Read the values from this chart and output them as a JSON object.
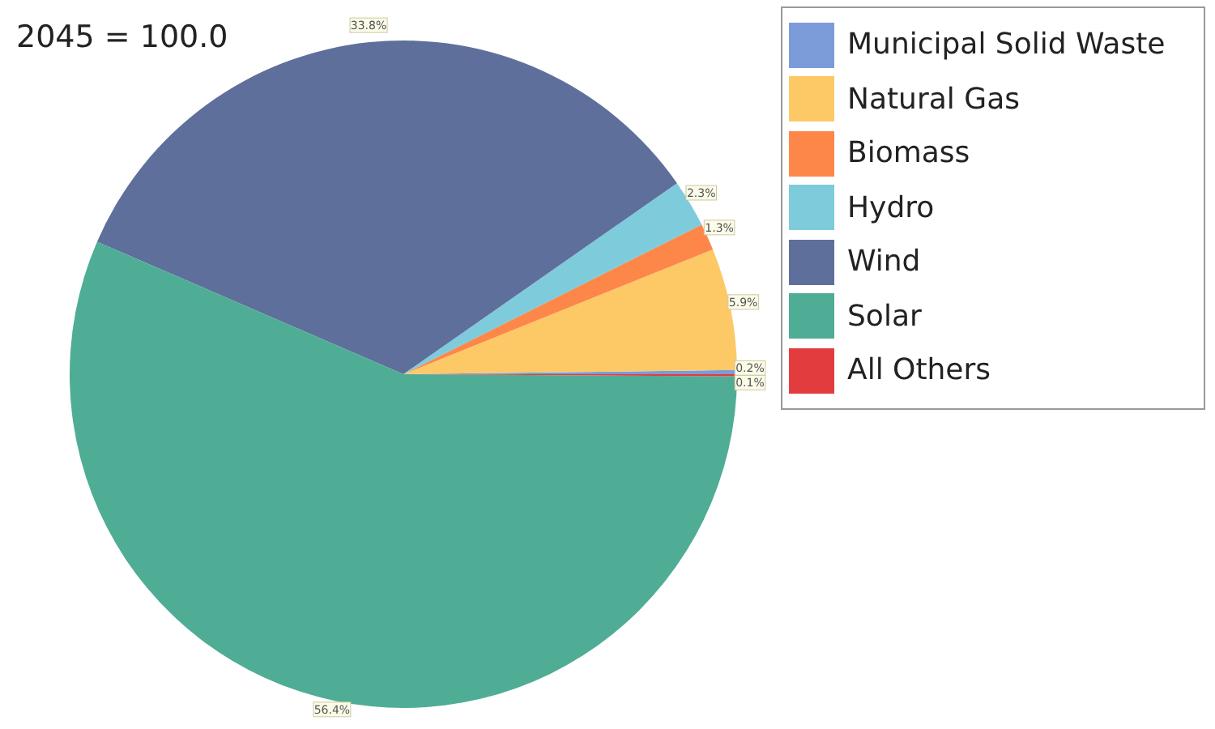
{
  "chart_data": {
    "type": "pie",
    "title": "2045 = 100.0",
    "categories": [
      "Municipal Solid Waste",
      "Natural Gas",
      "Biomass",
      "Hydro",
      "Wind",
      "Solar",
      "All Others"
    ],
    "values": [
      0.2,
      5.9,
      1.3,
      2.3,
      33.8,
      56.4,
      0.1
    ],
    "value_labels": [
      "0.2%",
      "5.9%",
      "1.3%",
      "2.3%",
      "33.8%",
      "56.4%",
      "0.1%"
    ],
    "colors": [
      "#7b9bd9",
      "#fdc966",
      "#fd8748",
      "#7ecbdb",
      "#5e6f9b",
      "#4fad95",
      "#e23c3f"
    ],
    "legend": "top right"
  }
}
